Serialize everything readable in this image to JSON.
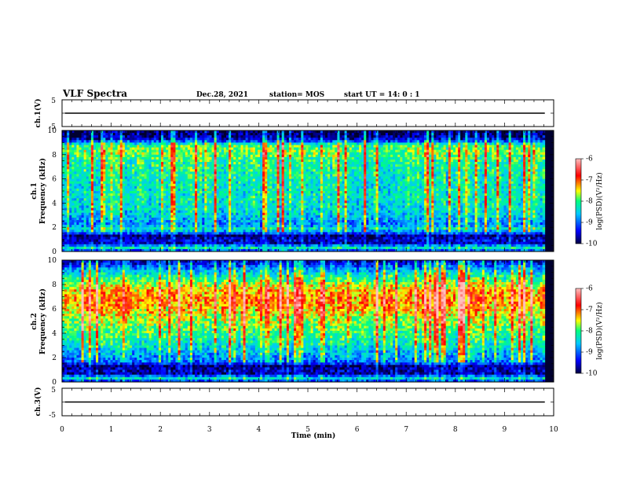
{
  "header": {
    "title": "VLF Spectra",
    "date": "Dec.28, 2021",
    "station": "station= MOS",
    "start": "start  UT =   14: 0  : 1"
  },
  "colors": {
    "background": "#ffffff",
    "colormap": [
      "#000040",
      "#0000ff",
      "#00c8ff",
      "#00ff80",
      "#ffff00",
      "#ff0000",
      "#ffc0c0"
    ]
  },
  "chart_data": [
    {
      "type": "line",
      "panel": "ch1-voltage",
      "ylabel": "ch.1(V)",
      "xlim": [
        0,
        10
      ],
      "ylim": [
        -5,
        5
      ],
      "yticks": [
        "5",
        "-5"
      ],
      "series": [
        {
          "x": [
            0.06,
            9.82
          ],
          "values": [
            0,
            0
          ]
        }
      ]
    },
    {
      "type": "heatmap",
      "panel": "ch1-spectrogram",
      "ylabel": "ch.1\nFrequency (kHz)",
      "xlim": [
        0,
        10
      ],
      "ylim": [
        0,
        10
      ],
      "yticks": [
        "0",
        "2",
        "4",
        "6",
        "8",
        "10"
      ],
      "colorbar": {
        "label": "log(PSD)(V²/Hz)",
        "range": [
          -10,
          -6
        ],
        "ticks": [
          "-6",
          "-7",
          "-8",
          "-9",
          "-10"
        ]
      },
      "spectrum_profile": {
        "freq_khz": [
          0.0,
          0.3,
          0.7,
          1.0,
          1.3,
          1.6,
          1.9,
          2.2,
          2.6,
          3.0,
          3.5,
          4.5,
          5.5,
          6.5,
          7.5,
          8.2,
          8.8,
          9.2,
          9.6,
          10.0
        ],
        "log_psd": [
          -9.4,
          -8.3,
          -9.6,
          -9.5,
          -9.8,
          -8.8,
          -8.4,
          -8.9,
          -8.7,
          -8.5,
          -8.4,
          -8.3,
          -8.3,
          -8.2,
          -8.1,
          -7.8,
          -8.0,
          -9.4,
          -9.8,
          -9.9
        ]
      }
    },
    {
      "type": "heatmap",
      "panel": "ch2-spectrogram",
      "ylabel": "ch.2\nFrequency (kHz)",
      "xlim": [
        0,
        10
      ],
      "ylim": [
        0,
        10
      ],
      "yticks": [
        "0",
        "2",
        "4",
        "6",
        "8",
        "10"
      ],
      "colorbar": {
        "label": "log(PSD)(V²/Hz)",
        "range": [
          -10,
          -6
        ],
        "ticks": [
          "-6",
          "-7",
          "-8",
          "-9",
          "-10"
        ]
      },
      "spectrum_profile": {
        "freq_khz": [
          0.0,
          0.3,
          0.7,
          1.0,
          1.3,
          1.6,
          2.0,
          2.5,
          3.0,
          4.0,
          5.0,
          6.0,
          6.8,
          7.5,
          8.2,
          8.8,
          9.3,
          9.7,
          10.0
        ],
        "log_psd": [
          -9.5,
          -8.4,
          -9.7,
          -9.6,
          -9.8,
          -9.0,
          -8.8,
          -8.6,
          -8.3,
          -8.0,
          -7.7,
          -7.3,
          -7.1,
          -7.3,
          -7.8,
          -8.3,
          -8.8,
          -9.3,
          -9.6
        ]
      }
    },
    {
      "type": "line",
      "panel": "ch3-voltage",
      "ylabel": "ch.3(V)",
      "xlabel": "Time  (min)",
      "xlim": [
        0,
        10
      ],
      "ylim": [
        -5,
        5
      ],
      "yticks": [
        "5",
        "-5"
      ],
      "xticks": [
        "0",
        "1",
        "2",
        "3",
        "4",
        "5",
        "6",
        "7",
        "8",
        "9",
        "10"
      ],
      "series": [
        {
          "x": [
            0.06,
            9.82
          ],
          "values": [
            0,
            0
          ]
        }
      ]
    }
  ]
}
